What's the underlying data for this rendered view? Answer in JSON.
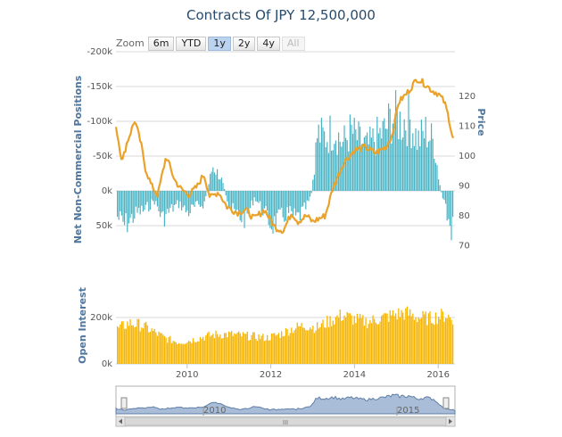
{
  "title": "Contracts Of JPY 12,500,000",
  "zoom": {
    "label": "Zoom",
    "buttons": [
      "6m",
      "YTD",
      "1y",
      "2y",
      "4y",
      "All"
    ],
    "active": "1y",
    "disabled": [
      "All"
    ]
  },
  "navigator": {
    "year_labels": [
      "2010",
      "2015"
    ],
    "scroll_glyph": "III"
  },
  "colors": {
    "positions": "#4ab3c4",
    "price": "#eaa22a",
    "open_interest": "#f7b500",
    "navigator_fill": "#a9bdd8",
    "navigator_line": "#5f7fa8",
    "title": "#274b6d",
    "axis_title": "#4d759e"
  },
  "chart_data": [
    {
      "type": "bar+line",
      "title": "Contracts Of JPY 12,500,000",
      "x_range": [
        2008.3,
        2016.4
      ],
      "x_ticks": [
        "2010",
        "2012",
        "2014",
        "2016"
      ],
      "series": [
        {
          "name": "Net Non-Commercial Positions",
          "type": "bar",
          "axis": "left",
          "color": "#4ab3c4",
          "x": [
            2008.3,
            2008.5,
            2008.8,
            2009.0,
            2009.2,
            2009.4,
            2009.6,
            2009.8,
            2010.0,
            2010.2,
            2010.4,
            2010.6,
            2010.8,
            2011.0,
            2011.2,
            2011.4,
            2011.6,
            2011.8,
            2012.0,
            2012.2,
            2012.4,
            2012.6,
            2012.8,
            2012.95,
            2013.1,
            2013.3,
            2013.5,
            2013.7,
            2013.9,
            2014.1,
            2014.3,
            2014.5,
            2014.7,
            2014.9,
            2015.1,
            2015.3,
            2015.5,
            2015.7,
            2015.9,
            2016.0,
            2016.1,
            2016.2,
            2016.3
          ],
          "values": [
            40000,
            55000,
            35000,
            30000,
            15000,
            45000,
            30000,
            20000,
            35000,
            25000,
            20000,
            -40000,
            -20000,
            25000,
            40000,
            45000,
            10000,
            30000,
            55000,
            45000,
            35000,
            45000,
            30000,
            10000,
            -90000,
            -85000,
            -100000,
            -75000,
            -95000,
            -80000,
            -70000,
            -85000,
            -95000,
            -120000,
            -110000,
            -115000,
            -80000,
            -95000,
            -75000,
            -20000,
            15000,
            40000,
            60000
          ]
        },
        {
          "name": "Price",
          "type": "line",
          "axis": "right",
          "color": "#eaa22a",
          "x": [
            2008.3,
            2008.45,
            2008.55,
            2008.75,
            2008.9,
            2009.0,
            2009.15,
            2009.3,
            2009.5,
            2009.7,
            2009.85,
            2010.05,
            2010.25,
            2010.4,
            2010.55,
            2010.75,
            2010.95,
            2011.2,
            2011.4,
            2011.6,
            2011.85,
            2012.1,
            2012.3,
            2012.5,
            2012.65,
            2012.85,
            2013.0,
            2013.15,
            2013.3,
            2013.5,
            2013.75,
            2014.0,
            2014.25,
            2014.5,
            2014.75,
            2014.9,
            2015.05,
            2015.25,
            2015.5,
            2015.7,
            2015.85,
            2016.0,
            2016.15,
            2016.25,
            2016.35
          ],
          "values": [
            110,
            98,
            104,
            112,
            104,
            96,
            90,
            87,
            100,
            92,
            89,
            87,
            90,
            94,
            86,
            88,
            83,
            81,
            82,
            79,
            82,
            76,
            75,
            81,
            78,
            80,
            78,
            79,
            80,
            90,
            98,
            102,
            103,
            101,
            103,
            107,
            118,
            121,
            126,
            124,
            122,
            121,
            118,
            113,
            106
          ]
        }
      ],
      "y_left": {
        "title": "Net Non-Commercial Positions",
        "range": [
          -200000,
          100000
        ],
        "reversed": true,
        "ticks": [
          "-200k",
          "-150k",
          "-100k",
          "-50k",
          "0k",
          "50k"
        ]
      },
      "y_right": {
        "title": "Price",
        "range": [
          65,
          135
        ],
        "ticks": [
          "70",
          "80",
          "90",
          "100",
          "110",
          "120"
        ]
      },
      "grid": true
    },
    {
      "type": "bar",
      "x_range": [
        2008.3,
        2016.4
      ],
      "series": [
        {
          "name": "Open Interest",
          "color": "#f7b500",
          "x": [
            2008.3,
            2008.6,
            2008.9,
            2009.2,
            2009.5,
            2009.8,
            2010.1,
            2010.4,
            2010.7,
            2011.0,
            2011.3,
            2011.6,
            2011.9,
            2012.2,
            2012.5,
            2012.8,
            2013.1,
            2013.4,
            2013.7,
            2014.0,
            2014.3,
            2014.6,
            2014.9,
            2015.2,
            2015.5,
            2015.8,
            2016.0,
            2016.2,
            2016.35
          ],
          "values": [
            150000,
            180000,
            170000,
            140000,
            110000,
            95000,
            105000,
            120000,
            130000,
            130000,
            125000,
            120000,
            115000,
            130000,
            155000,
            170000,
            160000,
            190000,
            215000,
            195000,
            185000,
            200000,
            215000,
            225000,
            205000,
            200000,
            210000,
            215000,
            185000
          ]
        }
      ],
      "y": {
        "title": "Open Interest",
        "range": [
          0,
          300000
        ],
        "ticks": [
          "0k",
          "200k"
        ]
      },
      "grid": true
    }
  ]
}
